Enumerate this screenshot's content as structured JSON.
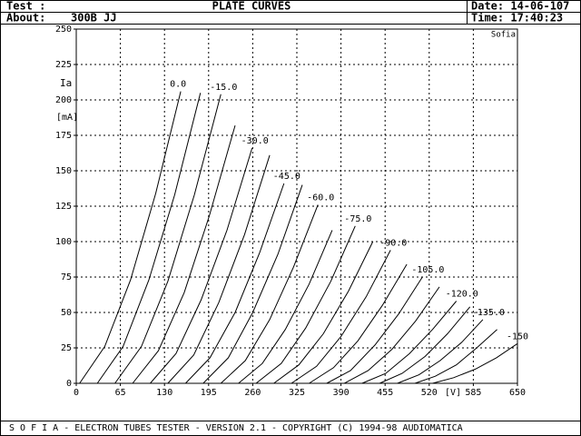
{
  "header": {
    "test": "Test :",
    "title": "PLATE CURVES",
    "date": "Date: 14-06-107",
    "about": "About:",
    "about_value": "300B JJ",
    "time": "Time: 17:40:23"
  },
  "footer": "S O F I A  -  ELECTRON TUBES TESTER  -  VERSION 2.1  -  COPYRIGHT (C) 1994-98 AUDIOMATICA",
  "chart_data": {
    "type": "line",
    "brand": "Sofia",
    "y_label": "Ia",
    "y_unit": "[mA]",
    "x_unit": "[V]",
    "xlim": [
      0,
      650
    ],
    "ylim": [
      0,
      250
    ],
    "xticks": [
      0,
      65,
      130,
      195,
      260,
      325,
      390,
      455,
      520,
      585,
      650
    ],
    "yticks": [
      0,
      25,
      50,
      75,
      100,
      125,
      150,
      175,
      200,
      225,
      250
    ],
    "grid": true,
    "color": "#000000",
    "series": [
      {
        "name": "0.0",
        "x": [
          5,
          42,
          80,
          117,
          154
        ],
        "values": [
          0,
          26,
          73,
          134,
          206
        ]
      },
      {
        "x": [
          31,
          69,
          107,
          145,
          183
        ],
        "values": [
          0,
          26,
          73,
          133,
          205
        ]
      },
      {
        "name": "-15.0",
        "x": [
          57,
          96,
          135,
          174,
          213
        ],
        "values": [
          0,
          26,
          72,
          133,
          204
        ]
      },
      {
        "x": [
          83,
          121,
          159,
          196,
          234
        ],
        "values": [
          0,
          23,
          64,
          118,
          182
        ]
      },
      {
        "name": "-30.0",
        "x": [
          109,
          147,
          184,
          222,
          259
        ],
        "values": [
          0,
          21,
          59,
          108,
          166
        ]
      },
      {
        "x": [
          135,
          173,
          210,
          248,
          285
        ],
        "values": [
          0,
          20,
          57,
          105,
          161
        ]
      },
      {
        "name": "-45.0",
        "x": [
          161,
          197,
          234,
          270,
          306
        ],
        "values": [
          0,
          18,
          50,
          92,
          141
        ]
      },
      {
        "x": [
          187,
          224,
          260,
          297,
          333
        ],
        "values": [
          0,
          18,
          50,
          91,
          140
        ]
      },
      {
        "name": "-60.0",
        "x": [
          213,
          249,
          285,
          320,
          356
        ],
        "values": [
          0,
          16,
          45,
          82,
          126
        ]
      },
      {
        "x": [
          239,
          274,
          308,
          343,
          377
        ],
        "values": [
          0,
          14,
          38,
          70,
          108
        ]
      },
      {
        "name": "-75.0",
        "x": [
          265,
          302,
          338,
          375,
          411
        ],
        "values": [
          0,
          14,
          39,
          72,
          111
        ]
      },
      {
        "x": [
          291,
          328,
          364,
          401,
          437
        ],
        "values": [
          0,
          13,
          35,
          65,
          100
        ]
      },
      {
        "name": "-90.0",
        "x": [
          317,
          354,
          390,
          427,
          463
        ],
        "values": [
          0,
          12,
          33,
          61,
          94
        ]
      },
      {
        "x": [
          343,
          379,
          415,
          451,
          487
        ],
        "values": [
          0,
          11,
          30,
          55,
          84
        ]
      },
      {
        "name": "-105.0",
        "x": [
          369,
          404,
          440,
          475,
          510
        ],
        "values": [
          0,
          9,
          27,
          49,
          75
        ]
      },
      {
        "x": [
          395,
          430,
          465,
          500,
          535
        ],
        "values": [
          0,
          9,
          24,
          44,
          68
        ]
      },
      {
        "name": "-120.0",
        "x": [
          421,
          456,
          491,
          525,
          560
        ],
        "values": [
          0,
          7,
          21,
          38,
          58
        ]
      },
      {
        "x": [
          447,
          480,
          514,
          547,
          580
        ],
        "values": [
          0,
          7,
          19,
          35,
          54
        ]
      },
      {
        "name": "-135.0",
        "x": [
          473,
          505,
          536,
          568,
          599
        ],
        "values": [
          0,
          6,
          16,
          29,
          45
        ]
      },
      {
        "x": [
          499,
          529,
          560,
          590,
          620
        ],
        "values": [
          0,
          5,
          13,
          25,
          38
        ]
      },
      {
        "name": "-150",
        "x": [
          525,
          556,
          588,
          619,
          650
        ],
        "values": [
          0,
          4,
          10,
          18,
          28
        ]
      }
    ]
  }
}
